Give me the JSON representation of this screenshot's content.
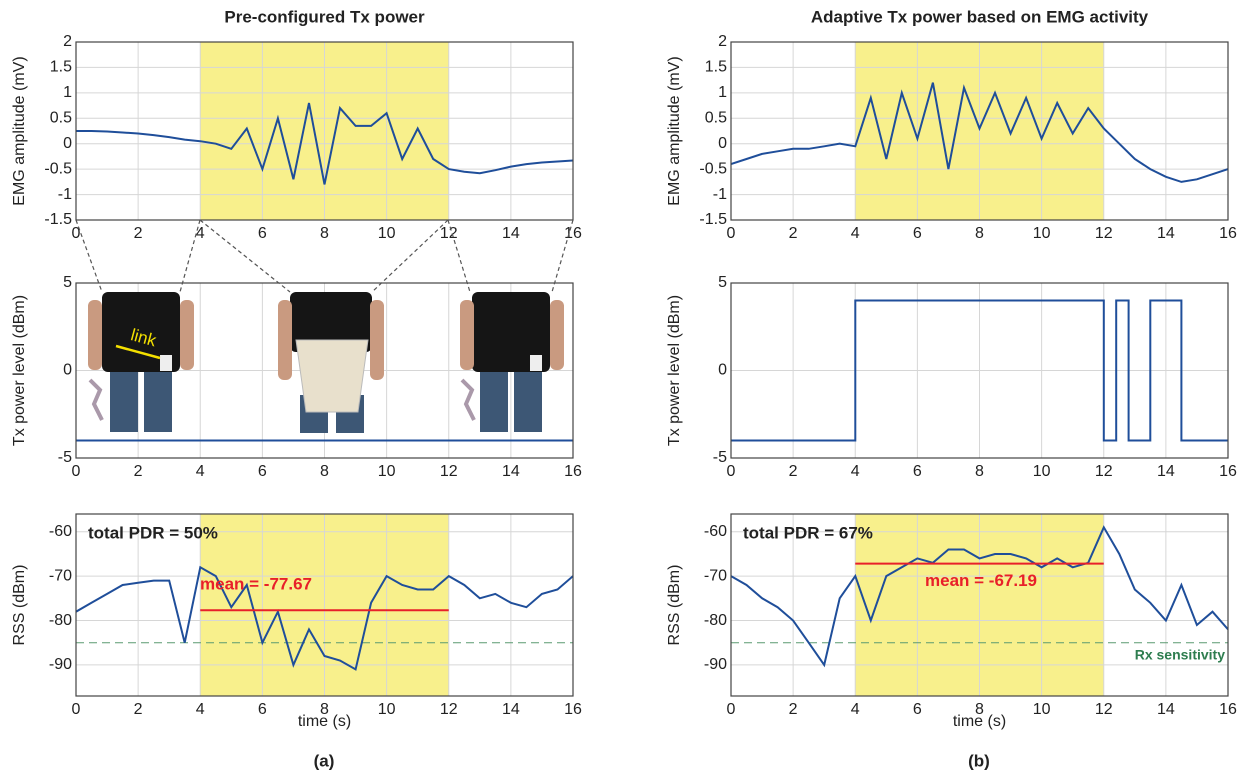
{
  "chart_data": [
    {
      "type": "line",
      "title": "Pre-configured Tx power",
      "ylabel": "EMG amplitude (mV)",
      "xlim": [
        0,
        16
      ],
      "xticks": [
        0,
        2,
        4,
        6,
        8,
        10,
        12,
        14,
        16
      ],
      "ylim": [
        -1.5,
        2
      ],
      "yticks": [
        2,
        1.5,
        1,
        0.5,
        0,
        -0.5,
        -1,
        -1.5
      ],
      "grid": true,
      "highlight": [
        4,
        12
      ],
      "x": [
        0,
        0.5,
        1,
        1.5,
        2,
        2.5,
        3,
        3.5,
        4,
        4.5,
        5,
        5.5,
        6,
        6.5,
        7,
        7.5,
        8,
        8.5,
        9,
        9.5,
        10,
        10.5,
        11,
        11.5,
        12,
        12.5,
        13,
        13.5,
        14,
        14.5,
        15,
        15.5,
        16
      ],
      "series": [
        {
          "color": "#1f4e9a",
          "values": [
            0.25,
            0.25,
            0.24,
            0.22,
            0.2,
            0.17,
            0.13,
            0.08,
            0.05,
            0.0,
            -0.1,
            0.3,
            -0.5,
            0.5,
            -0.7,
            0.8,
            -0.8,
            0.7,
            0.35,
            0.35,
            0.6,
            -0.3,
            0.3,
            -0.3,
            -0.5,
            -0.55,
            -0.58,
            -0.52,
            -0.45,
            -0.4,
            -0.37,
            -0.35,
            -0.33
          ]
        }
      ]
    },
    {
      "type": "line",
      "title": "Adaptive Tx power based on EMG activity",
      "ylabel": "EMG amplitude (mV)",
      "xlim": [
        0,
        16
      ],
      "xticks": [
        0,
        2,
        4,
        6,
        8,
        10,
        12,
        14,
        16
      ],
      "ylim": [
        -1.5,
        2
      ],
      "yticks": [
        2,
        1.5,
        1,
        0.5,
        0,
        -0.5,
        -1,
        -1.5
      ],
      "grid": true,
      "highlight": [
        4,
        12
      ],
      "x": [
        0,
        0.5,
        1,
        1.5,
        2,
        2.5,
        3,
        3.5,
        4,
        4.5,
        5,
        5.5,
        6,
        6.5,
        7,
        7.5,
        8,
        8.5,
        9,
        9.5,
        10,
        10.5,
        11,
        11.5,
        12,
        12.5,
        13,
        13.5,
        14,
        14.5,
        15,
        15.5,
        16
      ],
      "series": [
        {
          "color": "#1f4e9a",
          "values": [
            -0.4,
            -0.3,
            -0.2,
            -0.15,
            -0.1,
            -0.1,
            -0.05,
            0.0,
            -0.05,
            0.9,
            -0.3,
            1.0,
            0.1,
            1.2,
            -0.5,
            1.1,
            0.3,
            1.0,
            0.2,
            0.9,
            0.1,
            0.8,
            0.2,
            0.7,
            0.3,
            0.0,
            -0.3,
            -0.5,
            -0.65,
            -0.75,
            -0.7,
            -0.6,
            -0.5
          ]
        }
      ]
    },
    {
      "type": "line",
      "ylabel": "Tx power level (dBm)",
      "xlim": [
        0,
        16
      ],
      "xticks": [
        0,
        2,
        4,
        6,
        8,
        10,
        12,
        14,
        16
      ],
      "ylim": [
        -5,
        5
      ],
      "yticks": [
        5,
        0,
        -5
      ],
      "grid": true,
      "x": [
        0,
        16
      ],
      "series": [
        {
          "color": "#1f4e9a",
          "values": [
            -4,
            -4
          ]
        }
      ]
    },
    {
      "type": "line",
      "ylabel": "Tx power level (dBm)",
      "xlim": [
        0,
        16
      ],
      "xticks": [
        0,
        2,
        4,
        6,
        8,
        10,
        12,
        14,
        16
      ],
      "ylim": [
        -5,
        5
      ],
      "yticks": [
        5,
        0,
        -5
      ],
      "grid": true,
      "x": [
        0,
        4,
        4,
        12,
        12,
        12.4,
        12.4,
        12.8,
        12.8,
        13.5,
        13.5,
        14.5,
        14.5,
        16
      ],
      "series": [
        {
          "color": "#1f4e9a",
          "values": [
            -4,
            -4,
            4,
            4,
            -4,
            -4,
            4,
            4,
            -4,
            -4,
            4,
            4,
            -4,
            -4
          ]
        }
      ]
    },
    {
      "type": "line",
      "ylabel": "RSS (dBm)",
      "xlabel": "time (s)",
      "xlim": [
        0,
        16
      ],
      "xticks": [
        0,
        2,
        4,
        6,
        8,
        10,
        12,
        14,
        16
      ],
      "ylim": [
        -97,
        -56
      ],
      "yticks": [
        -60,
        -70,
        -80,
        -90
      ],
      "grid": true,
      "highlight": [
        4,
        12
      ],
      "annotation": "total PDR = 50%",
      "mean": -77.67,
      "mean_label": "mean = -77.67",
      "rx_sensitivity": -85,
      "x": [
        0,
        0.5,
        1,
        1.5,
        2,
        2.5,
        3,
        3.5,
        4,
        4.5,
        5,
        5.5,
        6,
        6.5,
        7,
        7.5,
        8,
        8.5,
        9,
        9.5,
        10,
        10.5,
        11,
        11.5,
        12,
        12.5,
        13,
        13.5,
        14,
        14.5,
        15,
        15.5,
        16
      ],
      "series": [
        {
          "color": "#1f4e9a",
          "values": [
            -78,
            -76,
            -74,
            -72,
            -71.5,
            -71,
            -71,
            -85,
            -68,
            -70,
            -77,
            -72,
            -85,
            -78,
            -90,
            -82,
            -88,
            -89,
            -91,
            -76,
            -70,
            -72,
            -73,
            -73,
            -70,
            -72,
            -75,
            -74,
            -76,
            -77,
            -74,
            -73,
            -70
          ]
        }
      ]
    },
    {
      "type": "line",
      "ylabel": "RSS (dBm)",
      "xlabel": "time (s)",
      "xlim": [
        0,
        16
      ],
      "xticks": [
        0,
        2,
        4,
        6,
        8,
        10,
        12,
        14,
        16
      ],
      "ylim": [
        -97,
        -56
      ],
      "yticks": [
        -60,
        -70,
        -80,
        -90
      ],
      "grid": true,
      "highlight": [
        4,
        12
      ],
      "annotation": "total PDR = 67%",
      "mean": -67.19,
      "mean_label": "mean = -67.19",
      "rx_sensitivity": -85,
      "rx_sensitivity_label": "Rx sensitivity",
      "x": [
        0,
        0.5,
        1,
        1.5,
        2,
        2.5,
        3,
        3.5,
        4,
        4.5,
        5,
        5.5,
        6,
        6.5,
        7,
        7.5,
        8,
        8.5,
        9,
        9.5,
        10,
        10.5,
        11,
        11.5,
        12,
        12.5,
        13,
        13.5,
        14,
        14.5,
        15,
        15.5,
        16
      ],
      "series": [
        {
          "color": "#1f4e9a",
          "values": [
            -70,
            -72,
            -75,
            -77,
            -80,
            -85,
            -90,
            -75,
            -70,
            -80,
            -70,
            -68,
            -66,
            -67,
            -64,
            -64,
            -66,
            -65,
            -65,
            -66,
            -68,
            -66,
            -68,
            -67,
            -59,
            -65,
            -73,
            -76,
            -80,
            -72,
            -81,
            -78,
            -82
          ]
        }
      ]
    }
  ],
  "panel_labels": [
    "(a)",
    "(b)"
  ],
  "photo_label": "link"
}
